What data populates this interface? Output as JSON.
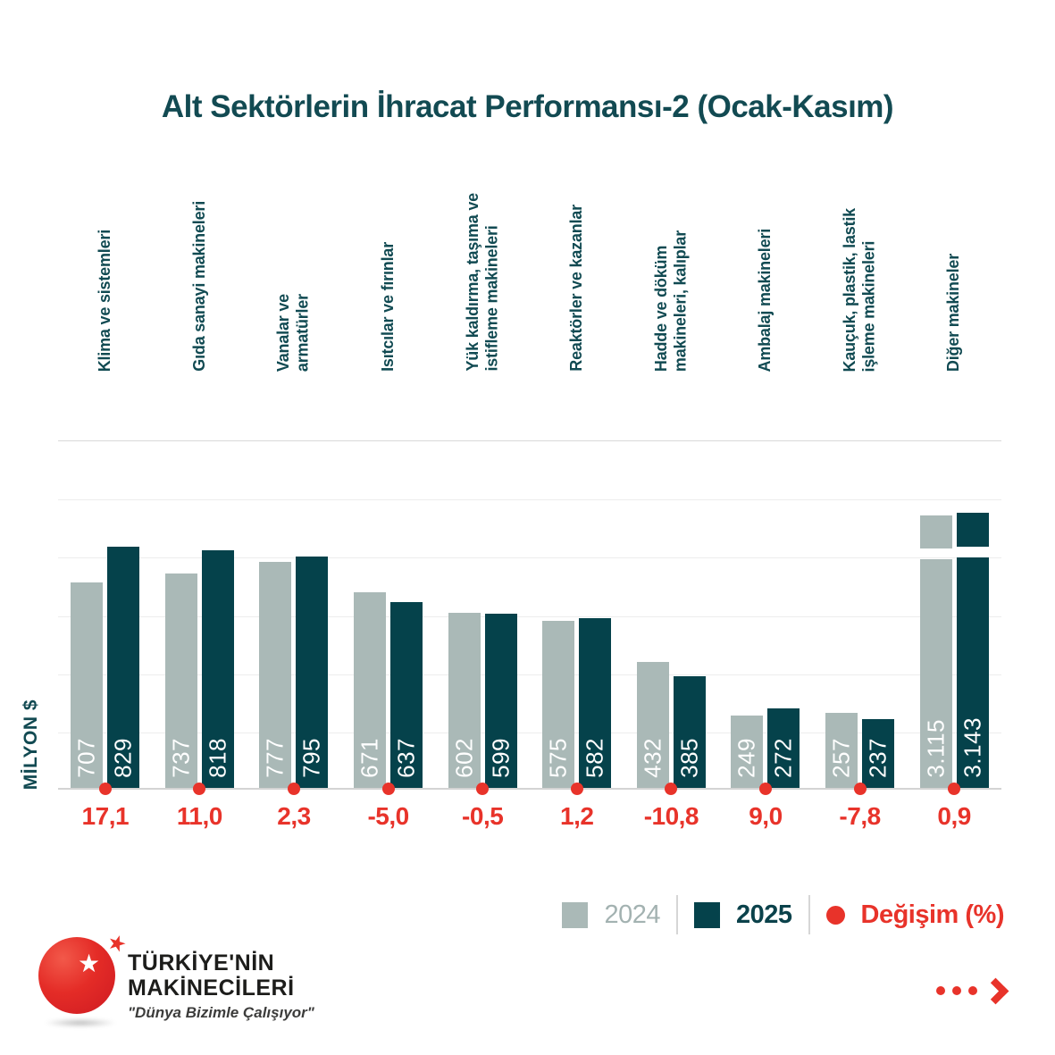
{
  "title": "Alt Sektörlerin İhracat Performansı-2 (Ocak-Kasım)",
  "y_axis_label": "MİLYON $",
  "chart_data": {
    "type": "bar",
    "title": "Alt Sektörlerin İhracat Performansı-2 (Ocak-Kasım)",
    "ylabel": "MİLYON $",
    "ylim": [
      0,
      1200
    ],
    "gridline_step": 200,
    "grid": true,
    "legend_position": "bottom-right",
    "categories": [
      [
        "Klima ve sistemleri"
      ],
      [
        "Gıda sanayi makineleri"
      ],
      [
        "Vanalar ve",
        "armatürler"
      ],
      [
        "Isıtcılar ve fırınlar"
      ],
      [
        "Yük kaldırma, taşıma ve",
        "istifleme makineleri"
      ],
      [
        "Reaktörler ve kazanlar"
      ],
      [
        "Hadde ve döküm",
        "makineleri, kalıplar"
      ],
      [
        "Ambalaj makineleri"
      ],
      [
        "Kauçuk, plastik, lastik",
        "işleme makineleri"
      ],
      [
        "Diğer makineler"
      ]
    ],
    "series": [
      {
        "name": "2024",
        "color": "#aab9b7",
        "values": [
          707,
          737,
          777,
          671,
          602,
          575,
          432,
          249,
          257,
          3115
        ],
        "labels": [
          "707",
          "737",
          "777",
          "671",
          "602",
          "575",
          "432",
          "249",
          "257",
          "3.115"
        ]
      },
      {
        "name": "2025",
        "color": "#05424b",
        "values": [
          829,
          818,
          795,
          637,
          599,
          582,
          385,
          272,
          237,
          3143
        ],
        "labels": [
          "829",
          "818",
          "795",
          "637",
          "599",
          "582",
          "385",
          "272",
          "237",
          "3.143"
        ]
      }
    ],
    "change_series": {
      "name": "Değişim (%)",
      "color": "#e8332a",
      "values": [
        17.1,
        11.0,
        2.3,
        -5.0,
        -0.5,
        1.2,
        -10.8,
        9.0,
        -7.8,
        0.9
      ],
      "values_display": [
        "17,1",
        "11,0",
        "2,3",
        "-5,0",
        "-0,5",
        "1,2",
        "-10,8",
        "9,0",
        "-7,8",
        "0,9"
      ]
    },
    "axis_break": {
      "category_index": 9,
      "style": "white gap near top of bars"
    }
  },
  "legend": {
    "items": [
      {
        "label": "2024",
        "swatch": "gray-square"
      },
      {
        "label": "2025",
        "swatch": "teal-square"
      },
      {
        "label": "Değişim (%)",
        "swatch": "red-dot"
      }
    ]
  },
  "footer": {
    "brand_line1": "TÜRKİYE'NİN",
    "brand_line2": "MAKİNECİLERİ",
    "slogan": "\"Dünya Bizimle Çalışıyor\""
  },
  "colors": {
    "bar_2024": "#aab9b7",
    "bar_2025": "#05424b",
    "change_red": "#e8332a",
    "heading_teal": "#124a52",
    "gridline": "#ededed"
  }
}
